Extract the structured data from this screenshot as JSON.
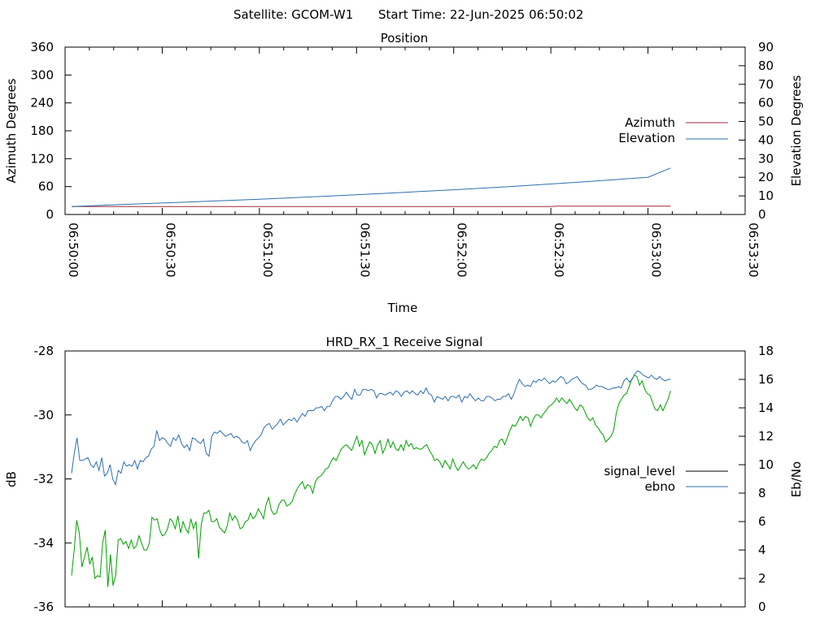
{
  "header": {
    "satellite_text": "Satellite: GCOM-W1",
    "start_time_text": "Start Time: 22-Jun-2025 06:50:02"
  },
  "chart_data": [
    {
      "type": "line",
      "title": "Position",
      "xlabel": "Time",
      "ylabel": "Azimuth Degrees",
      "y2label": "Elevation Degrees",
      "x_ticks": [
        "06:50:00",
        "06:50:30",
        "06:51:00",
        "06:51:30",
        "06:52:00",
        "06:52:30",
        "06:53:00",
        "06:53:30"
      ],
      "xlim": [
        "06:50:00",
        "06:53:30"
      ],
      "ylim": [
        0,
        360
      ],
      "y_ticks": [
        0,
        60,
        120,
        180,
        240,
        300,
        360
      ],
      "y2lim": [
        0,
        90
      ],
      "y2_ticks": [
        0,
        10,
        20,
        30,
        40,
        50,
        60,
        70,
        80,
        90
      ],
      "grid": false,
      "legend": "right",
      "series": [
        {
          "name": "Azimuth",
          "axis": "left",
          "color": "#a0283c",
          "x": [
            "06:50:02",
            "06:50:30",
            "06:51:00",
            "06:51:30",
            "06:52:00",
            "06:52:30",
            "06:52:32",
            "06:53:00",
            "06:53:07"
          ],
          "values": [
            17,
            17,
            17,
            17,
            17,
            17,
            18,
            18,
            18
          ]
        },
        {
          "name": "Elevation",
          "axis": "right",
          "color": "#2e6fb0",
          "x": [
            "06:50:02",
            "06:50:20",
            "06:50:40",
            "06:51:00",
            "06:51:20",
            "06:51:40",
            "06:52:00",
            "06:52:20",
            "06:52:40",
            "06:53:00",
            "06:53:07"
          ],
          "values": [
            4.3,
            5.5,
            6.8,
            8.2,
            9.8,
            11.5,
            13.3,
            15.3,
            17.5,
            20.0,
            25.0
          ]
        }
      ]
    },
    {
      "type": "line",
      "title": "HRD_RX_1 Receive Signal",
      "ylabel": "dB",
      "y2label": "Eb/No",
      "ylim": [
        -36,
        -28
      ],
      "y_ticks": [
        -36,
        -34,
        -32,
        -30,
        -28
      ],
      "y2lim": [
        0,
        18
      ],
      "y2_ticks": [
        0,
        2,
        4,
        6,
        8,
        10,
        12,
        14,
        16,
        18
      ],
      "grid": false,
      "legend": "right",
      "series": [
        {
          "name": "signal_level",
          "axis": "left",
          "color": "#000000",
          "values": []
        },
        {
          "name": "ebno",
          "axis": "right",
          "color": "#2e6fb0",
          "values": [
            9.4,
            10.8,
            11.9,
            10.3,
            10.3,
            10.4,
            10.5,
            10.0,
            9.8,
            10.2,
            9.6,
            10.5,
            9.2,
            9.4,
            10.0,
            9.0,
            8.6,
            9.6,
            9.4,
            10.2,
            9.9,
            10.0,
            9.9,
            10.3,
            9.7,
            10.3,
            10.2,
            10.5,
            10.6,
            11.1,
            11.3,
            12.4,
            11.7,
            11.9,
            11.8,
            11.5,
            11.3,
            11.9,
            11.7,
            12.1,
            11.5,
            11.2,
            11.4,
            11.0,
            11.9,
            11.8,
            11.6,
            11.5,
            11.8,
            10.8,
            10.6,
            12.0,
            12.3,
            12.2,
            12.4,
            12.2,
            12.0,
            12.1,
            12.2,
            11.9,
            12.0,
            11.9,
            11.6,
            11.5,
            11.7,
            11.0,
            11.4,
            11.7,
            11.9,
            12.1,
            12.6,
            12.8,
            12.9,
            12.5,
            12.7,
            12.9,
            13.2,
            12.8,
            13.0,
            13.2,
            13.1,
            13.3,
            13.0,
            13.3,
            13.6,
            13.4,
            13.8,
            13.8,
            13.8,
            14.0,
            14.0,
            14.1,
            13.8,
            14.1,
            14.1,
            14.5,
            14.8,
            14.8,
            14.6,
            14.8,
            15.1,
            14.8,
            14.6,
            15.3,
            14.9,
            14.9,
            15.3,
            15.3,
            15.2,
            15.3,
            15.2,
            14.7,
            15.0,
            15.0,
            14.9,
            15.0,
            15.1,
            14.9,
            15.2,
            15.1,
            14.8,
            15.1,
            15.2,
            15.0,
            15.2,
            15.0,
            14.9,
            15.2,
            15.0,
            15.4,
            15.0,
            14.9,
            14.4,
            14.8,
            14.7,
            14.6,
            14.8,
            14.5,
            14.8,
            14.8,
            14.7,
            14.9,
            14.4,
            14.8,
            14.7,
            15.0,
            14.7,
            14.5,
            14.7,
            14.5,
            14.5,
            14.8,
            14.8,
            14.7,
            14.5,
            14.6,
            14.6,
            14.8,
            14.8,
            15.0,
            14.6,
            15.0,
            15.6,
            16.0,
            15.7,
            15.5,
            15.6,
            15.5,
            15.9,
            15.8,
            16.0,
            15.9,
            16.1,
            15.9,
            15.7,
            15.9,
            15.8,
            16.0,
            16.2,
            16.1,
            15.7,
            15.8,
            16.0,
            16.1,
            16.2,
            15.9,
            15.7,
            15.6,
            15.3,
            15.3,
            15.4,
            15.6,
            15.5,
            15.5,
            15.4,
            15.3,
            15.3,
            15.4,
            15.4,
            15.5,
            15.4,
            15.9,
            16.1,
            15.8,
            16.0,
            16.4,
            16.6,
            16.5,
            16.3,
            16.2,
            16.1,
            16.3,
            16.1,
            16.0,
            16.2,
            16.0,
            15.9,
            16.0,
            16.0
          ]
        }
      ],
      "unlabeled_series": [
        {
          "color": "#00a000",
          "axis": "right",
          "values": [
            2.2,
            4.0,
            6.1,
            5.2,
            2.8,
            3.5,
            4.2,
            3.0,
            3.5,
            2.0,
            2.2,
            2.1,
            4.5,
            5.4,
            1.4,
            3.7,
            1.5,
            2.2,
            4.7,
            4.8,
            4.4,
            4.6,
            4.1,
            4.7,
            4.1,
            4.3,
            5.0,
            4.5,
            4.0,
            4.0,
            4.5,
            6.3,
            6.1,
            6.2,
            5.4,
            5.0,
            5.1,
            5.5,
            6.2,
            6.0,
            5.5,
            6.4,
            5.2,
            6.0,
            5.5,
            5.2,
            6.2,
            5.5,
            6.0,
            3.4,
            5.8,
            6.6,
            6.6,
            6.8,
            6.0,
            6.0,
            6.2,
            5.6,
            5.4,
            5.2,
            5.7,
            6.6,
            6.1,
            6.4,
            6.1,
            5.5,
            5.6,
            6.0,
            6.1,
            6.6,
            6.2,
            6.4,
            6.9,
            6.6,
            6.2,
            7.2,
            7.7,
            6.8,
            6.5,
            6.6,
            7.2,
            7.5,
            7.5,
            7.1,
            7.2,
            7.4,
            7.9,
            8.3,
            8.6,
            8.8,
            8.3,
            8.6,
            8.5,
            8.0,
            8.8,
            9.1,
            9.2,
            9.4,
            9.7,
            9.8,
            10.2,
            10.5,
            10.3,
            10.7,
            11.1,
            11.3,
            11.4,
            11.2,
            11.0,
            11.5,
            12.0,
            11.3,
            11.7,
            10.7,
            11.2,
            11.6,
            11.4,
            10.8,
            11.4,
            11.7,
            10.8,
            11.2,
            11.8,
            11.2,
            11.6,
            11.1,
            11.0,
            11.4,
            11.0,
            11.7,
            11.3,
            11.5,
            11.1,
            11.2,
            11.1,
            11.1,
            11.3,
            11.4,
            11.0,
            10.7,
            10.3,
            10.4,
            10.2,
            9.8,
            10.3,
            10.0,
            9.7,
            10.4,
            9.9,
            9.6,
            9.9,
            10.2,
            9.9,
            9.7,
            9.8,
            10.0,
            9.7,
            10.1,
            10.4,
            10.3,
            10.5,
            10.8,
            11.0,
            11.3,
            11.2,
            11.7,
            11.8,
            11.4,
            11.9,
            12.4,
            12.8,
            12.7,
            13.0,
            13.4,
            13.1,
            13.4,
            13.3,
            12.7,
            13.2,
            13.5,
            13.5,
            13.3,
            13.6,
            13.8,
            14.1,
            14.2,
            14.4,
            14.7,
            14.4,
            14.7,
            14.5,
            14.3,
            14.6,
            14.3,
            14.0,
            13.8,
            14.2,
            14.1,
            13.7,
            13.3,
            13.1,
            13.3,
            12.8,
            12.6,
            12.3,
            12.1,
            11.6,
            11.8,
            12.0,
            12.4,
            13.6,
            14.3,
            14.6,
            14.9,
            15.0,
            15.5,
            16.0,
            16.3,
            16.2,
            15.6,
            15.9,
            15.3,
            15.0,
            14.9,
            14.4,
            13.9,
            13.8,
            14.2,
            13.8,
            14.2,
            14.6,
            15.2
          ]
        }
      ]
    }
  ]
}
